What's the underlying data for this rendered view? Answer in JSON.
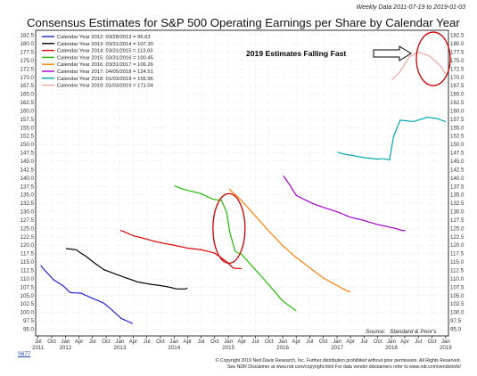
{
  "header": {
    "title": "Consensus Estimates for S&P 500 Operating Earnings per Share by Calendar Year",
    "date_range": "Weekly Data 2011-07-19 to 2019-01-03"
  },
  "annotation": {
    "text": "2019 Estimates Falling Fast"
  },
  "source": {
    "label": "Source:",
    "value": "Standard & Poor's"
  },
  "footer": {
    "code": "S677",
    "line1": "© Copyright 2019 Ned Davis Research, Inc. Further distribution prohibited without prior permission. All Rights Reserved.",
    "line2": "See NDR Disclaimer at www.ndr.com/copyright.html  For data vendor disclaimers refer to www.ndr.com/vendorinfo/"
  },
  "colors": {
    "frame": "#000000",
    "annotation_circle": "#cc0000",
    "arrow": "#000000"
  },
  "chart_data": {
    "type": "line",
    "title": "Consensus Estimates for S&P 500 Operating Earnings per Share by Calendar Year",
    "subtitle": "Weekly Data 2011-07-19 to 2019-01-03",
    "xlabel": "",
    "ylabel": "",
    "xlim": [
      "2011-06-15",
      "2019-01-20"
    ],
    "ylim": [
      93,
      184
    ],
    "grid": true,
    "legend_position": "top-left",
    "y_ticks": [
      95.0,
      97.5,
      100.0,
      102.5,
      105.0,
      107.5,
      110.0,
      112.5,
      115.0,
      117.5,
      120.0,
      122.5,
      125.0,
      127.5,
      130.0,
      132.5,
      135.0,
      137.5,
      140.0,
      142.5,
      145.0,
      147.5,
      150.0,
      152.5,
      155.0,
      157.5,
      160.0,
      162.5,
      165.0,
      167.5,
      170.0,
      172.5,
      175.0,
      177.5,
      180.0,
      182.5
    ],
    "x_ticks": [
      {
        "date": "2011-07-01",
        "label": "Jul"
      },
      {
        "date": "2011-10-01",
        "label": "Oct"
      },
      {
        "date": "2012-01-01",
        "label": "Jan"
      },
      {
        "date": "2012-04-01",
        "label": "Apr"
      },
      {
        "date": "2012-07-01",
        "label": "Jul"
      },
      {
        "date": "2012-10-01",
        "label": "Oct"
      },
      {
        "date": "2013-01-01",
        "label": "Jan"
      },
      {
        "date": "2013-04-01",
        "label": "Apr"
      },
      {
        "date": "2013-07-01",
        "label": "Jul"
      },
      {
        "date": "2013-10-01",
        "label": "Oct"
      },
      {
        "date": "2014-01-01",
        "label": "Jan"
      },
      {
        "date": "2014-04-01",
        "label": "Apr"
      },
      {
        "date": "2014-07-01",
        "label": "Jul"
      },
      {
        "date": "2014-10-01",
        "label": "Oct"
      },
      {
        "date": "2015-01-01",
        "label": "Jan"
      },
      {
        "date": "2015-04-01",
        "label": "Apr"
      },
      {
        "date": "2015-07-01",
        "label": "Jul"
      },
      {
        "date": "2015-10-01",
        "label": "Oct"
      },
      {
        "date": "2016-01-01",
        "label": "Jan"
      },
      {
        "date": "2016-04-01",
        "label": "Apr"
      },
      {
        "date": "2016-07-01",
        "label": "Jul"
      },
      {
        "date": "2016-10-01",
        "label": "Oct"
      },
      {
        "date": "2017-01-01",
        "label": "Jan"
      },
      {
        "date": "2017-04-01",
        "label": "Apr"
      },
      {
        "date": "2017-07-01",
        "label": "Jul"
      },
      {
        "date": "2017-10-01",
        "label": "Oct"
      },
      {
        "date": "2018-01-01",
        "label": "Jan"
      },
      {
        "date": "2018-04-01",
        "label": "Apr"
      },
      {
        "date": "2018-07-01",
        "label": "Jul"
      },
      {
        "date": "2018-10-01",
        "label": "Oct"
      },
      {
        "date": "2019-01-01",
        "label": "Jan"
      }
    ],
    "year_labels": [
      {
        "date": "2011-07-01",
        "label": "2011"
      },
      {
        "date": "2012-01-01",
        "label": "2012"
      },
      {
        "date": "2013-01-01",
        "label": "2013"
      },
      {
        "date": "2014-01-01",
        "label": "2014"
      },
      {
        "date": "2015-01-01",
        "label": "2015"
      },
      {
        "date": "2016-01-01",
        "label": "2016"
      },
      {
        "date": "2017-01-01",
        "label": "2017"
      },
      {
        "date": "2018-01-01",
        "label": "2018"
      },
      {
        "date": "2019-01-01",
        "label": "2019"
      }
    ],
    "series": [
      {
        "name": "Calendar Year 2012",
        "legend": "Calendar Year 2012: 03/28/2013 = 96.63",
        "color": "#1f1fd0",
        "points": [
          [
            "2011-07-19",
            114.0
          ],
          [
            "2011-09-01",
            112.0
          ],
          [
            "2011-10-15",
            109.5
          ],
          [
            "2011-12-15",
            108.2
          ],
          [
            "2012-02-01",
            106.2
          ],
          [
            "2012-04-15",
            105.5
          ],
          [
            "2012-07-01",
            104.0
          ],
          [
            "2012-09-15",
            102.5
          ],
          [
            "2012-11-15",
            100.5
          ],
          [
            "2013-01-10",
            98.2
          ],
          [
            "2013-03-28",
            96.63
          ]
        ]
      },
      {
        "name": "Calendar Year 2013",
        "legend": "Calendar Year 2013: 03/31/2014 = 107.30",
        "color": "#000000",
        "points": [
          [
            "2012-01-05",
            119.2
          ],
          [
            "2012-03-15",
            118.8
          ],
          [
            "2012-05-15",
            117.0
          ],
          [
            "2012-07-15",
            114.5
          ],
          [
            "2012-09-15",
            112.5
          ],
          [
            "2012-12-01",
            111.2
          ],
          [
            "2013-02-15",
            110.0
          ],
          [
            "2013-05-01",
            109.2
          ],
          [
            "2013-08-01",
            108.2
          ],
          [
            "2013-11-01",
            107.5
          ],
          [
            "2014-01-15",
            107.0
          ],
          [
            "2014-03-31",
            107.3
          ]
        ]
      },
      {
        "name": "Calendar Year 2014",
        "legend": "Calendar Year 2014: 03/31/2015 = 113.03",
        "color": "#dd0000",
        "points": [
          [
            "2013-01-05",
            124.2
          ],
          [
            "2013-04-01",
            123.0
          ],
          [
            "2013-07-01",
            122.0
          ],
          [
            "2013-10-01",
            121.0
          ],
          [
            "2014-01-01",
            120.0
          ],
          [
            "2014-04-01",
            119.3
          ],
          [
            "2014-07-01",
            118.8
          ],
          [
            "2014-10-01",
            117.5
          ],
          [
            "2014-12-15",
            115.5
          ],
          [
            "2015-02-01",
            113.5
          ],
          [
            "2015-03-31",
            113.03
          ]
        ]
      },
      {
        "name": "Calendar Year 2015",
        "legend": "Calendar Year 2015: 03/31/2016 = 100.45",
        "color": "#22bb00",
        "points": [
          [
            "2014-01-05",
            137.8
          ],
          [
            "2014-04-01",
            136.5
          ],
          [
            "2014-07-01",
            135.5
          ],
          [
            "2014-09-15",
            134.0
          ],
          [
            "2014-11-15",
            133.5
          ],
          [
            "2014-12-20",
            130.0
          ],
          [
            "2015-01-10",
            124.0
          ],
          [
            "2015-02-15",
            118.5
          ],
          [
            "2015-04-01",
            117.0
          ],
          [
            "2015-07-01",
            112.5
          ],
          [
            "2015-10-01",
            108.0
          ],
          [
            "2016-01-01",
            103.5
          ],
          [
            "2016-03-31",
            100.45
          ]
        ]
      },
      {
        "name": "Calendar Year 2016",
        "legend": "Calendar Year 2016: 03/31/2017 = 106.26",
        "color": "#ff7f00",
        "points": [
          [
            "2015-01-05",
            137.0
          ],
          [
            "2015-04-01",
            133.0
          ],
          [
            "2015-07-01",
            128.5
          ],
          [
            "2015-10-01",
            124.0
          ],
          [
            "2016-01-01",
            120.0
          ],
          [
            "2016-04-01",
            116.5
          ],
          [
            "2016-07-01",
            113.5
          ],
          [
            "2016-10-01",
            110.5
          ],
          [
            "2017-01-01",
            108.0
          ],
          [
            "2017-03-31",
            106.26
          ]
        ]
      },
      {
        "name": "Calendar Year 2017",
        "legend": "Calendar Year 2017: 04/05/2018 = 124.51",
        "color": "#a000c8",
        "points": [
          [
            "2016-01-05",
            140.5
          ],
          [
            "2016-04-01",
            135.0
          ],
          [
            "2016-07-01",
            133.0
          ],
          [
            "2016-10-01",
            131.5
          ],
          [
            "2017-01-01",
            130.0
          ],
          [
            "2017-04-01",
            128.5
          ],
          [
            "2017-07-01",
            127.5
          ],
          [
            "2017-10-01",
            126.0
          ],
          [
            "2018-01-01",
            125.0
          ],
          [
            "2018-04-05",
            124.51
          ]
        ]
      },
      {
        "name": "Calendar Year 2018",
        "legend": "Calendar Year 2018: 01/03/2019 = 156.96",
        "color": "#00a8a8",
        "points": [
          [
            "2017-01-05",
            147.8
          ],
          [
            "2017-04-01",
            147.0
          ],
          [
            "2017-07-01",
            146.2
          ],
          [
            "2017-10-01",
            145.5
          ],
          [
            "2017-12-20",
            145.5
          ],
          [
            "2018-01-15",
            152.0
          ],
          [
            "2018-03-01",
            157.5
          ],
          [
            "2018-06-01",
            157.0
          ],
          [
            "2018-09-01",
            158.0
          ],
          [
            "2018-11-01",
            158.0
          ],
          [
            "2019-01-03",
            156.96
          ]
        ]
      },
      {
        "name": "Calendar Year 2019",
        "legend": "Calendar Year 2019: 01/03/2019 = 171.04",
        "color": "#f4a6a0",
        "points": [
          [
            "2018-01-05",
            169.5
          ],
          [
            "2018-03-01",
            172.0
          ],
          [
            "2018-05-01",
            176.0
          ],
          [
            "2018-07-01",
            177.2
          ],
          [
            "2018-09-01",
            176.5
          ],
          [
            "2018-10-15",
            175.0
          ],
          [
            "2018-12-01",
            173.0
          ],
          [
            "2019-01-03",
            171.04
          ]
        ]
      }
    ],
    "annotations": [
      {
        "text": "2019 Estimates Falling Fast",
        "kind": "arrow-label"
      },
      {
        "kind": "circle",
        "center": [
          "2015-01-05",
          125.0
        ]
      },
      {
        "kind": "circle",
        "center": [
          "2018-10-10",
          175.5
        ]
      }
    ]
  }
}
